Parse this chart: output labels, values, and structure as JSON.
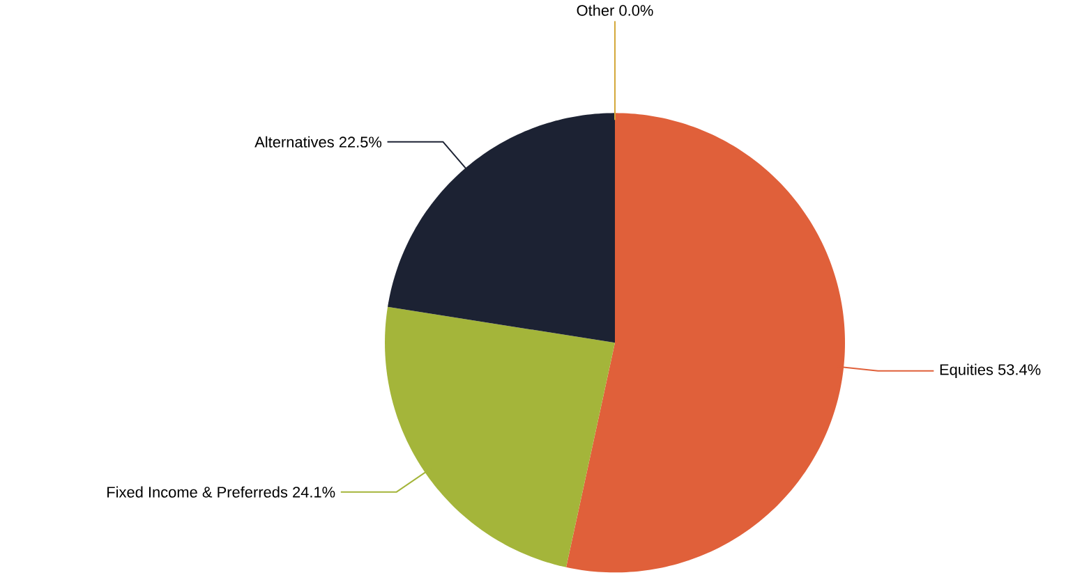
{
  "chart_data": {
    "type": "pie",
    "categories": [
      "Equities",
      "Fixed Income & Preferreds",
      "Alternatives",
      "Other"
    ],
    "values": [
      53.4,
      24.1,
      22.5,
      0.0
    ],
    "value_labels": [
      "53.4%",
      "24.1%",
      "22.5%",
      "0.0%"
    ],
    "colors": [
      "#e0603a",
      "#a4b53a",
      "#1c2233",
      "#d4a83a"
    ]
  }
}
